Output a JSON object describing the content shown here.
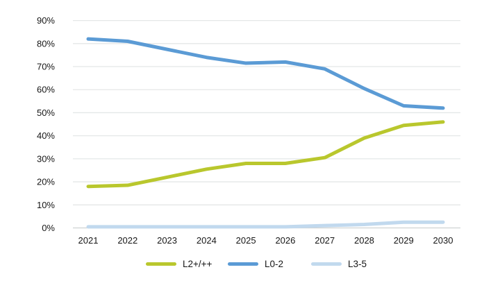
{
  "chart_data": {
    "type": "line",
    "title": "",
    "xlabel": "",
    "ylabel": "",
    "categories": [
      "2021",
      "2022",
      "2023",
      "2024",
      "2025",
      "2026",
      "2027",
      "2028",
      "2029",
      "2030"
    ],
    "series": [
      {
        "name": "L2+/++",
        "color": "#b9c72d",
        "values": [
          18,
          18.5,
          22,
          25.5,
          28,
          28,
          30.5,
          39,
          44.5,
          46
        ]
      },
      {
        "name": "L0-2",
        "color": "#5b9bd5",
        "values": [
          82,
          81,
          77.5,
          74,
          71.5,
          72,
          69,
          60.5,
          53,
          52
        ]
      },
      {
        "name": "L3-5",
        "color": "#c1d9ee",
        "values": [
          0.5,
          0.5,
          0.5,
          0.5,
          0.5,
          0.5,
          1,
          1.5,
          2.5,
          2.5
        ]
      }
    ],
    "ylim": [
      0,
      90
    ],
    "ytick_step": 10,
    "y_tick_labels": [
      "0%",
      "10%",
      "20%",
      "30%",
      "40%",
      "50%",
      "60%",
      "70%",
      "80%",
      "90%"
    ],
    "grid": "horizontal",
    "legend_position": "bottom",
    "colors": {
      "background": "#ffffff",
      "gridline": "#e4e7e7",
      "baseline": "#cfd2d2",
      "text": "#161616"
    }
  }
}
